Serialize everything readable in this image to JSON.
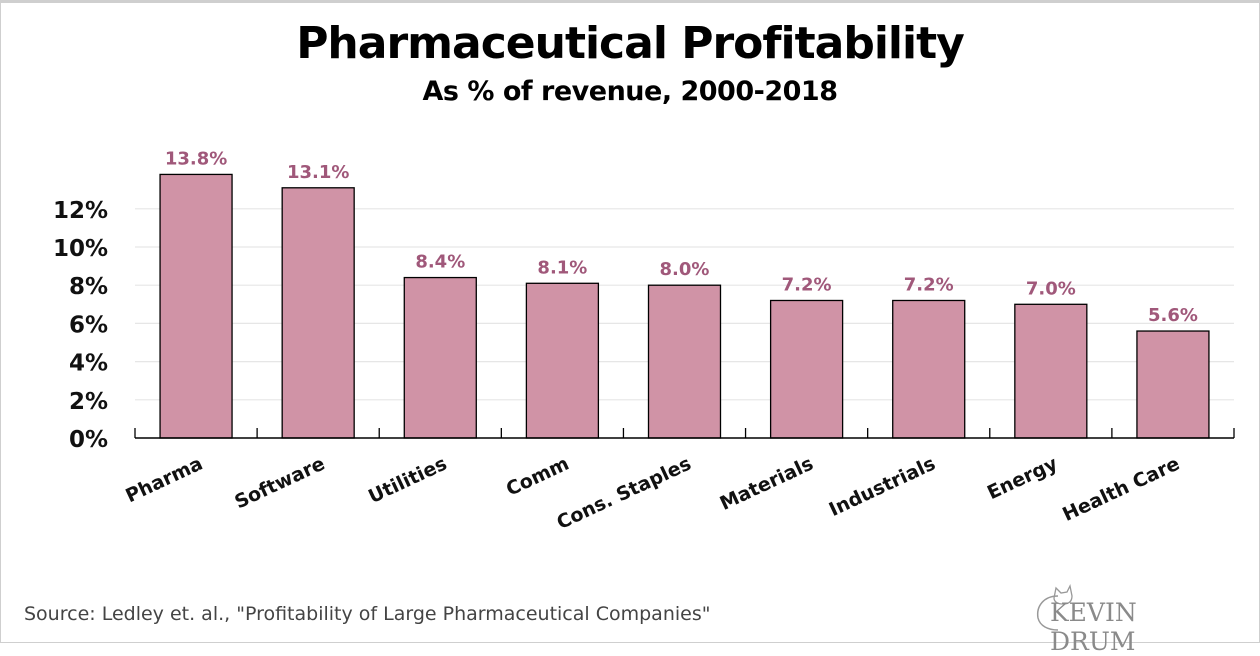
{
  "chart_data": {
    "type": "bar",
    "title": "Pharmaceutical Profitability",
    "subtitle": "As % of revenue, 2000-2018",
    "xlabel": "",
    "ylabel": "",
    "categories": [
      "Pharma",
      "Software",
      "Utilities",
      "Comm",
      "Cons. Staples",
      "Materials",
      "Industrials",
      "Energy",
      "Health Care"
    ],
    "values": [
      13.8,
      13.1,
      8.4,
      8.1,
      8.0,
      7.2,
      7.2,
      7.0,
      5.6
    ],
    "data_labels": [
      "13.8%",
      "13.1%",
      "8.4%",
      "8.1%",
      "8.0%",
      "7.2%",
      "7.2%",
      "7.0%",
      "5.6%"
    ],
    "ylim": [
      0,
      14
    ],
    "yticks": [
      0,
      2,
      4,
      6,
      8,
      10,
      12
    ],
    "ytick_labels": [
      "0%",
      "2%",
      "4%",
      "6%",
      "8%",
      "10%",
      "12%"
    ],
    "grid": true,
    "legend": "none",
    "colors": {
      "bar": "#d093a6",
      "bar_edge": "#000000",
      "data_label": "#a0587a",
      "grid": "#e6e6e6"
    }
  },
  "footer": {
    "source": "Source: Ledley et. al., \"Profitability of Large Pharmaceutical Companies\"",
    "logo_text": "KEVIN DRUM",
    "logo_icon": "cat-icon"
  }
}
